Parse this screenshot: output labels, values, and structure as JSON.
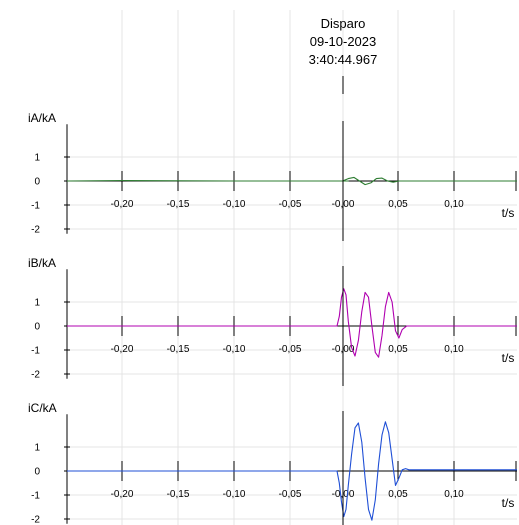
{
  "trigger": {
    "label": "Disparo",
    "date": "09-10-2023",
    "time": "3:40:44.967"
  },
  "chart_data": [
    {
      "type": "line",
      "ylabel": "iA/kA",
      "xlabel": "t/s",
      "xlim": [
        -0.25,
        0.15
      ],
      "ylim": [
        -2.2,
        2.2
      ],
      "yticks": [
        -2,
        -1,
        0,
        1
      ],
      "xtick_labels": [
        "-0,20",
        "-0,15",
        "-0,10",
        "-0,05",
        "-0,00",
        "0,05",
        "0,10"
      ],
      "grid": true,
      "series": [
        {
          "color": "#2e7d32",
          "x": [
            -0.25,
            -0.2,
            -0.1,
            0.0,
            -0.005,
            0.0,
            0.005,
            0.01,
            0.015,
            0.02,
            0.025,
            0.03,
            0.035,
            0.04,
            0.045,
            0.05,
            0.1,
            0.15
          ],
          "y": [
            0.0,
            0.02,
            0.0,
            0.0,
            0.0,
            0.1,
            0.15,
            0.0,
            -0.15,
            -0.08,
            0.1,
            0.12,
            0.0,
            -0.05,
            0.0,
            0.0,
            0.0,
            0.0
          ]
        }
      ]
    },
    {
      "type": "line",
      "ylabel": "iB/kA",
      "xlabel": "t/s",
      "xlim": [
        -0.25,
        0.15
      ],
      "ylim": [
        -2.2,
        2.2
      ],
      "yticks": [
        -2,
        -1,
        0,
        1
      ],
      "xtick_labels": [
        "-0,20",
        "-0,15",
        "-0,10",
        "-0,05",
        "-0,00",
        "0,05",
        "0,10"
      ],
      "grid": true,
      "series": [
        {
          "color": "#b000b0",
          "x": [
            -0.25,
            -0.01,
            -0.008,
            -0.006,
            -0.004,
            -0.002,
            0.0,
            0.003,
            0.006,
            0.009,
            0.012,
            0.015,
            0.018,
            0.021,
            0.024,
            0.027,
            0.03,
            0.033,
            0.036,
            0.039,
            0.042,
            0.045,
            0.048,
            0.052,
            0.15
          ],
          "y": [
            0.0,
            0.0,
            0.4,
            1.2,
            1.55,
            1.3,
            0.2,
            -0.9,
            -1.25,
            -0.6,
            0.6,
            1.4,
            1.2,
            0.0,
            -1.1,
            -1.3,
            -0.4,
            0.8,
            1.4,
            1.0,
            -0.2,
            -0.5,
            -0.15,
            0.0,
            0.0
          ]
        }
      ]
    },
    {
      "type": "line",
      "ylabel": "iC/kA",
      "xlabel": "t/s",
      "xlim": [
        -0.25,
        0.15
      ],
      "ylim": [
        -2.2,
        2.2
      ],
      "yticks": [
        -2,
        -1,
        0,
        1
      ],
      "xtick_labels": [
        "-0,20",
        "-0,15",
        "-0,10",
        "-0,05",
        "-0,00",
        "0,05",
        "0,10"
      ],
      "grid": true,
      "series": [
        {
          "color": "#1f4fd6",
          "x": [
            -0.25,
            -0.01,
            -0.008,
            -0.006,
            -0.004,
            -0.002,
            0.0,
            0.003,
            0.006,
            0.009,
            0.012,
            0.015,
            0.018,
            0.021,
            0.024,
            0.027,
            0.03,
            0.033,
            0.036,
            0.039,
            0.042,
            0.045,
            0.048,
            0.051,
            0.054,
            0.15
          ],
          "y": [
            0.0,
            0.0,
            -0.5,
            -1.3,
            -1.9,
            -1.6,
            -0.6,
            0.7,
            1.8,
            2.0,
            1.2,
            -0.3,
            -1.6,
            -2.05,
            -1.2,
            0.3,
            1.5,
            2.05,
            1.6,
            0.5,
            -0.6,
            -0.3,
            0.05,
            0.1,
            0.05,
            0.05
          ]
        }
      ]
    }
  ]
}
